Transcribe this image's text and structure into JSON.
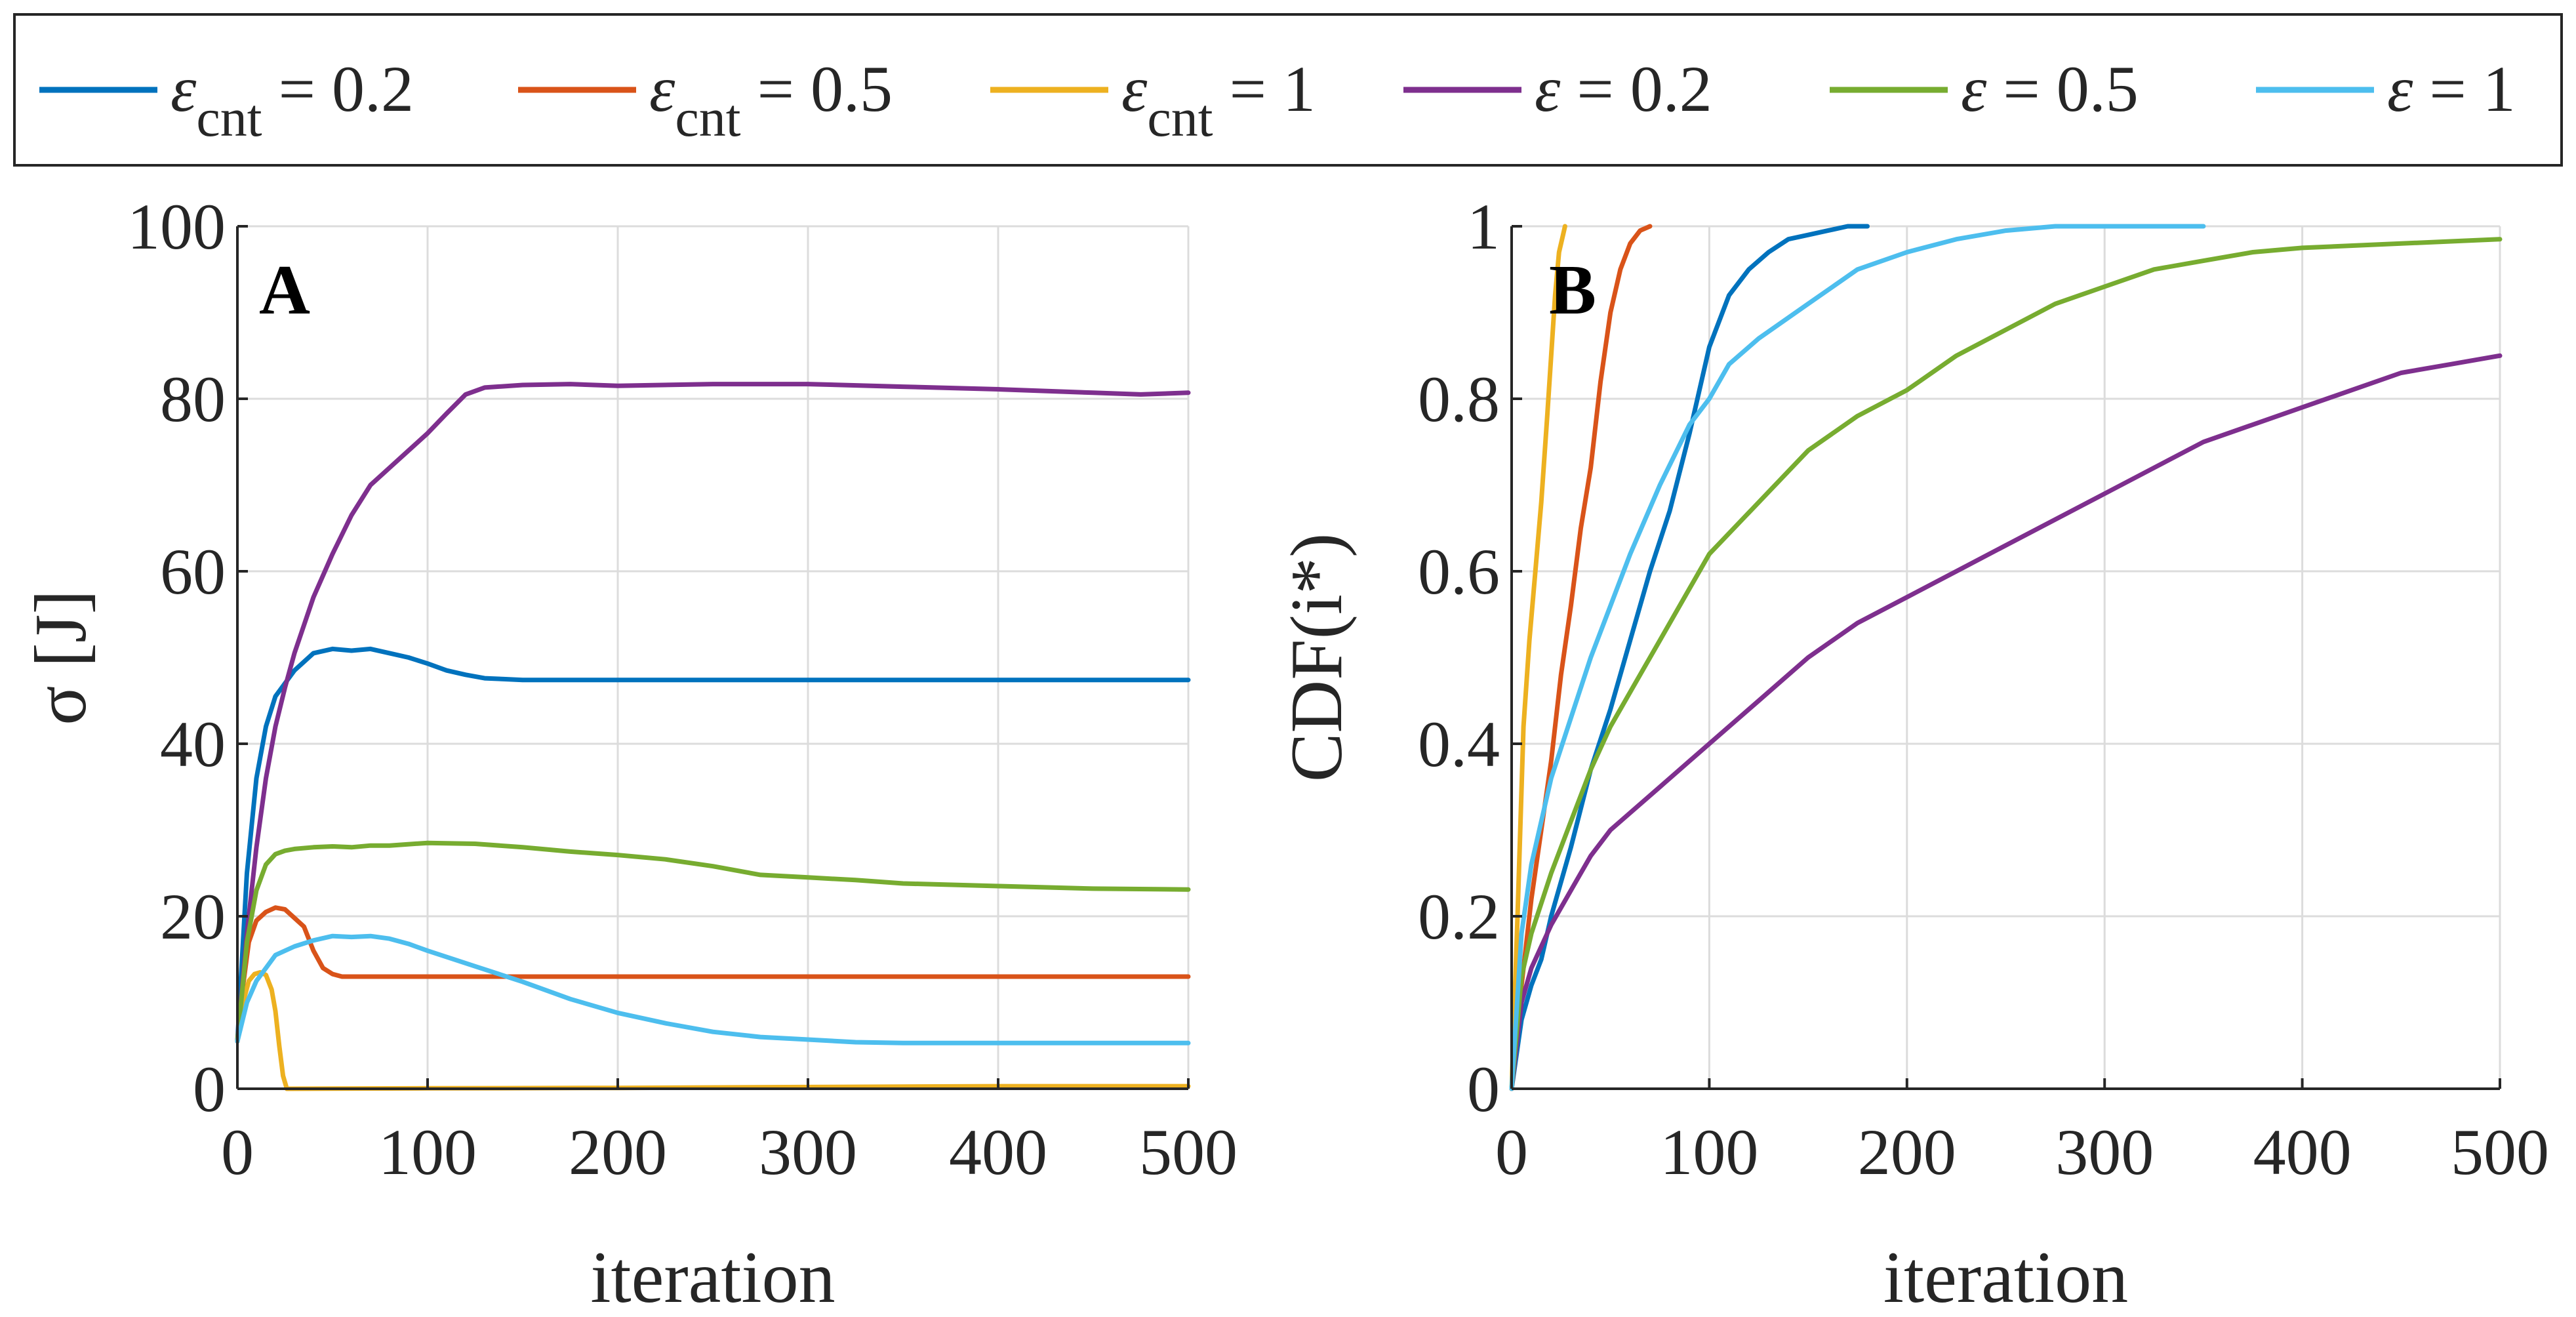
{
  "legend": {
    "entries": [
      {
        "label": "ε",
        "sub": "cnt",
        "value": " = 0.2",
        "color": "#0072BD"
      },
      {
        "label": "ε",
        "sub": "cnt",
        "value": " = 0.5",
        "color": "#D95319"
      },
      {
        "label": "ε",
        "sub": "cnt",
        "value": " = 1",
        "color": "#EDB120"
      },
      {
        "label": "ε",
        "sub": "",
        "value": " = 0.2",
        "color": "#7E2F8E"
      },
      {
        "label": "ε",
        "sub": "",
        "value": " = 0.5",
        "color": "#77AC30"
      },
      {
        "label": "ε",
        "sub": "",
        "value": " = 1",
        "color": "#4DBEEE"
      }
    ]
  },
  "chart_data": [
    {
      "type": "line",
      "panel_label": "A",
      "xlabel": "iteration",
      "ylabel": "σ [J]",
      "xlim": [
        0,
        500
      ],
      "ylim": [
        0,
        100
      ],
      "xticks": [
        "0",
        "100",
        "200",
        "300",
        "400",
        "500"
      ],
      "yticks": [
        "0",
        "20",
        "40",
        "60",
        "80",
        "100"
      ],
      "grid": true,
      "series": [
        {
          "name": "ε_cnt = 0.2",
          "color": "#0072BD",
          "x": [
            0,
            5,
            10,
            15,
            20,
            30,
            40,
            50,
            60,
            70,
            80,
            90,
            100,
            110,
            120,
            130,
            140,
            150,
            175,
            200,
            300,
            400,
            500
          ],
          "y": [
            5.5,
            25,
            36,
            42,
            45.5,
            48.5,
            50.5,
            51,
            50.8,
            51,
            50.5,
            50,
            49.3,
            48.5,
            48,
            47.6,
            47.5,
            47.4,
            47.4,
            47.4,
            47.4,
            47.4,
            47.4
          ]
        },
        {
          "name": "ε_cnt = 0.5",
          "color": "#D95319",
          "x": [
            0,
            3,
            6,
            10,
            15,
            20,
            25,
            30,
            35,
            40,
            45,
            50,
            55,
            60,
            70,
            100,
            200,
            300,
            400,
            500
          ],
          "y": [
            5.5,
            12,
            17,
            19.5,
            20.5,
            21,
            20.8,
            19.8,
            18.8,
            16,
            14,
            13.3,
            13,
            13,
            13,
            13,
            13,
            13,
            13,
            13
          ]
        },
        {
          "name": "ε_cnt = 1",
          "color": "#EDB120",
          "x": [
            0,
            3,
            6,
            9,
            12,
            15,
            18,
            20,
            22,
            24,
            26,
            28,
            100,
            200,
            300,
            400,
            500
          ],
          "y": [
            5.5,
            10,
            12.5,
            13.3,
            13.5,
            13.2,
            11.5,
            9,
            5,
            1.5,
            0,
            0,
            0.05,
            0.1,
            0.2,
            0.3,
            0.3
          ]
        },
        {
          "name": "ε = 0.2",
          "color": "#7E2F8E",
          "x": [
            0,
            5,
            10,
            15,
            20,
            25,
            30,
            40,
            50,
            60,
            70,
            80,
            90,
            100,
            110,
            120,
            130,
            150,
            175,
            200,
            250,
            300,
            350,
            400,
            450,
            475,
            500
          ],
          "y": [
            5.5,
            18,
            28,
            36,
            42,
            46.5,
            50.5,
            57,
            62,
            66.5,
            70,
            72,
            74,
            76,
            78.3,
            80.5,
            81.3,
            81.6,
            81.7,
            81.5,
            81.7,
            81.7,
            81.4,
            81.1,
            80.7,
            80.5,
            80.7
          ]
        },
        {
          "name": "ε = 0.5",
          "color": "#77AC30",
          "x": [
            0,
            5,
            10,
            15,
            20,
            25,
            30,
            40,
            50,
            60,
            70,
            80,
            100,
            125,
            150,
            175,
            200,
            225,
            250,
            275,
            300,
            325,
            350,
            400,
            450,
            500
          ],
          "y": [
            5.5,
            17,
            23,
            26,
            27.2,
            27.6,
            27.8,
            28,
            28.1,
            28,
            28.2,
            28.2,
            28.5,
            28.4,
            28,
            27.5,
            27.1,
            26.6,
            25.8,
            24.8,
            24.5,
            24.2,
            23.8,
            23.5,
            23.2,
            23.1
          ]
        },
        {
          "name": "ε = 1",
          "color": "#4DBEEE",
          "x": [
            0,
            5,
            10,
            15,
            20,
            30,
            40,
            50,
            60,
            70,
            80,
            90,
            100,
            125,
            150,
            175,
            200,
            225,
            250,
            275,
            300,
            325,
            350,
            400,
            450,
            500
          ],
          "y": [
            5.5,
            10,
            12.5,
            14,
            15.5,
            16.5,
            17.2,
            17.7,
            17.6,
            17.7,
            17.4,
            16.8,
            16,
            14.2,
            12.4,
            10.4,
            8.8,
            7.6,
            6.6,
            6,
            5.7,
            5.4,
            5.3,
            5.3,
            5.3,
            5.3
          ]
        }
      ]
    },
    {
      "type": "line",
      "panel_label": "B",
      "xlabel": "iteration",
      "ylabel": "CDF(i*)",
      "xlim": [
        0,
        500
      ],
      "ylim": [
        0,
        1
      ],
      "xticks": [
        "0",
        "100",
        "200",
        "300",
        "400",
        "500"
      ],
      "yticks": [
        "0",
        "0.2",
        "0.4",
        "0.6",
        "0.8",
        "1"
      ],
      "grid": true,
      "series": [
        {
          "name": "ε_cnt = 0.2",
          "color": "#0072BD",
          "x": [
            0,
            5,
            10,
            15,
            20,
            30,
            40,
            50,
            60,
            70,
            80,
            90,
            100,
            110,
            120,
            130,
            140,
            150,
            160,
            170,
            180
          ],
          "y": [
            0,
            0.08,
            0.12,
            0.15,
            0.2,
            0.28,
            0.37,
            0.44,
            0.52,
            0.6,
            0.67,
            0.76,
            0.86,
            0.92,
            0.95,
            0.97,
            0.985,
            0.99,
            0.995,
            1,
            1
          ]
        },
        {
          "name": "ε_cnt = 0.5",
          "color": "#D95319",
          "x": [
            0,
            5,
            10,
            15,
            20,
            25,
            30,
            35,
            40,
            45,
            50,
            55,
            60,
            65,
            70
          ],
          "y": [
            0,
            0.12,
            0.22,
            0.3,
            0.38,
            0.48,
            0.56,
            0.65,
            0.72,
            0.82,
            0.9,
            0.95,
            0.98,
            0.995,
            1
          ]
        },
        {
          "name": "ε_cnt = 1",
          "color": "#EDB120",
          "x": [
            0,
            3,
            6,
            9,
            12,
            15,
            18,
            20,
            22,
            24,
            26,
            27
          ],
          "y": [
            0,
            0.2,
            0.42,
            0.52,
            0.6,
            0.68,
            0.78,
            0.85,
            0.92,
            0.97,
            0.99,
            1
          ]
        },
        {
          "name": "ε = 0.2",
          "color": "#7E2F8E",
          "x": [
            0,
            5,
            10,
            20,
            30,
            40,
            50,
            60,
            75,
            90,
            100,
            125,
            150,
            175,
            200,
            225,
            250,
            275,
            300,
            325,
            350,
            375,
            400,
            425,
            450,
            475,
            500
          ],
          "y": [
            0,
            0.1,
            0.14,
            0.19,
            0.23,
            0.27,
            0.3,
            0.32,
            0.35,
            0.38,
            0.4,
            0.45,
            0.5,
            0.54,
            0.57,
            0.6,
            0.63,
            0.66,
            0.69,
            0.72,
            0.75,
            0.77,
            0.79,
            0.81,
            0.83,
            0.84,
            0.85
          ]
        },
        {
          "name": "ε = 0.5",
          "color": "#77AC30",
          "x": [
            0,
            5,
            10,
            20,
            30,
            40,
            50,
            60,
            75,
            90,
            100,
            125,
            150,
            175,
            200,
            225,
            250,
            275,
            300,
            325,
            350,
            375,
            400,
            450,
            500
          ],
          "y": [
            0,
            0.13,
            0.18,
            0.25,
            0.31,
            0.37,
            0.42,
            0.46,
            0.52,
            0.58,
            0.62,
            0.68,
            0.74,
            0.78,
            0.81,
            0.85,
            0.88,
            0.91,
            0.93,
            0.95,
            0.96,
            0.97,
            0.975,
            0.98,
            0.985
          ]
        },
        {
          "name": "ε = 1",
          "color": "#4DBEEE",
          "x": [
            0,
            5,
            10,
            20,
            30,
            40,
            50,
            60,
            75,
            90,
            100,
            110,
            125,
            150,
            175,
            200,
            225,
            250,
            275,
            300,
            325,
            350
          ],
          "y": [
            0,
            0.18,
            0.26,
            0.36,
            0.43,
            0.5,
            0.56,
            0.62,
            0.7,
            0.77,
            0.8,
            0.84,
            0.87,
            0.91,
            0.95,
            0.97,
            0.985,
            0.995,
            1,
            1,
            1,
            1
          ]
        }
      ]
    }
  ]
}
